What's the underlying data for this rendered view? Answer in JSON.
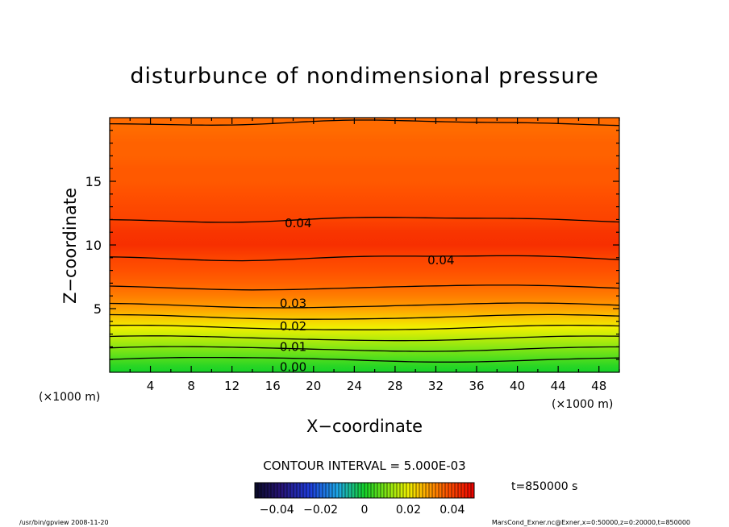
{
  "chart_data": {
    "type": "heatmap",
    "title": "disturbunce of nondimensional pressure",
    "xlabel": "X−coordinate",
    "ylabel": "Z−coordinate",
    "x_unit": "(×1000 m)",
    "x_unit_right": "(×1000 m)",
    "xlim": [
      0,
      50
    ],
    "ylim": [
      0,
      20
    ],
    "x_ticks": [
      "4",
      "8",
      "12",
      "16",
      "20",
      "24",
      "28",
      "32",
      "36",
      "40",
      "44",
      "48"
    ],
    "y_ticks": [
      "5",
      "10",
      "15"
    ],
    "contour_interval_text": "CONTOUR INTERVAL = 5.000E-03",
    "time_text": "t=850000 s",
    "colorbar_ticks": [
      "−0.04",
      "−0.02",
      "0",
      "0.02",
      "0.04"
    ],
    "colorbar_range": [
      -0.05,
      0.05
    ],
    "contour_labels": [
      {
        "text": "0.04",
        "x": 18.5,
        "z": 11.7
      },
      {
        "text": "0.04",
        "x": 32.5,
        "z": 8.8
      },
      {
        "text": "0.03",
        "x": 18.0,
        "z": 5.4
      },
      {
        "text": "0.02",
        "x": 18.0,
        "z": 3.6
      },
      {
        "text": "0.01",
        "x": 18.0,
        "z": 2.0
      },
      {
        "text": "0.00",
        "x": 18.0,
        "z": 0.4
      }
    ],
    "field_profile": [
      {
        "z": 0.0,
        "value": 0.0
      },
      {
        "z": 0.5,
        "value": 0.002
      },
      {
        "z": 1.0,
        "value": 0.005
      },
      {
        "z": 1.5,
        "value": 0.008
      },
      {
        "z": 2.0,
        "value": 0.011
      },
      {
        "z": 2.5,
        "value": 0.014
      },
      {
        "z": 3.0,
        "value": 0.017
      },
      {
        "z": 3.5,
        "value": 0.02
      },
      {
        "z": 4.0,
        "value": 0.023
      },
      {
        "z": 4.5,
        "value": 0.026
      },
      {
        "z": 5.0,
        "value": 0.029
      },
      {
        "z": 5.5,
        "value": 0.031
      },
      {
        "z": 6.0,
        "value": 0.033
      },
      {
        "z": 7.0,
        "value": 0.036
      },
      {
        "z": 8.0,
        "value": 0.038
      },
      {
        "z": 9.0,
        "value": 0.04
      },
      {
        "z": 10.0,
        "value": 0.043
      },
      {
        "z": 11.0,
        "value": 0.042
      },
      {
        "z": 12.0,
        "value": 0.04
      },
      {
        "z": 13.0,
        "value": 0.039
      },
      {
        "z": 14.0,
        "value": 0.038
      },
      {
        "z": 15.0,
        "value": 0.037
      },
      {
        "z": 16.0,
        "value": 0.037
      },
      {
        "z": 17.0,
        "value": 0.036
      },
      {
        "z": 18.0,
        "value": 0.036
      },
      {
        "z": 19.0,
        "value": 0.035
      },
      {
        "z": 20.0,
        "value": 0.035
      }
    ]
  },
  "footer": {
    "left": "/usr/bin/gpview   2008-11-20",
    "right": "MarsCond_Exner.nc@Exner,x=0:50000,z=0:20000,t=850000"
  }
}
